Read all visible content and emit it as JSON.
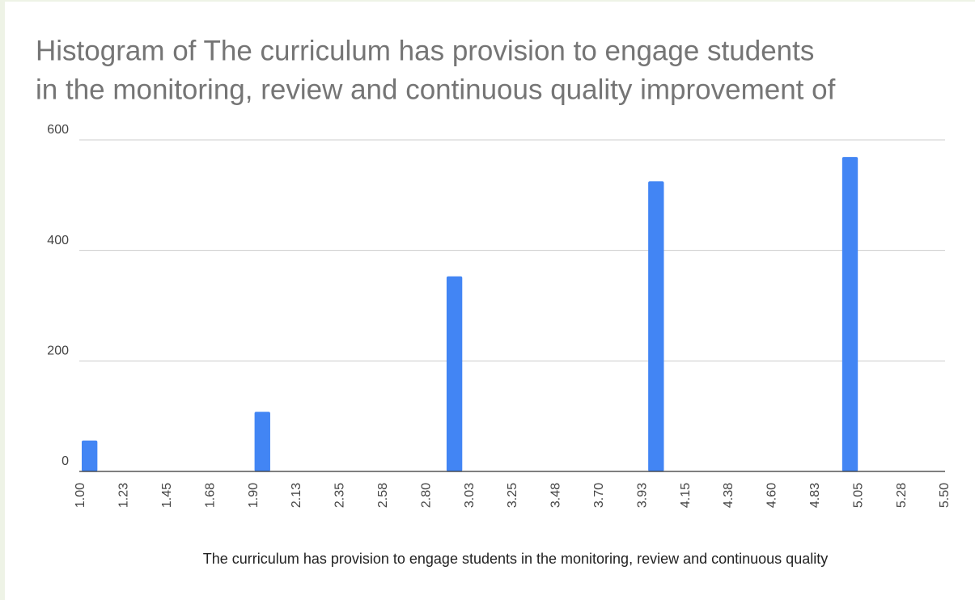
{
  "chart_data": {
    "type": "histogram",
    "title": "Histogram of  The curriculum has provision to engage students in the monitoring, review and continuous quality improvement of",
    "title_lines": [
      "Histogram of  The curriculum has provision to engage students",
      "in the monitoring, review and continuous quality improvement of"
    ],
    "xlabel": "The curriculum has provision to engage students in the monitoring, review and continuous quality",
    "bins": [
      1.0,
      1.09,
      1.9,
      1.99,
      2.9,
      2.99,
      3.95,
      4.04,
      4.96,
      5.05,
      5.5
    ],
    "values": [
      56,
      0,
      108,
      0,
      353,
      0,
      525,
      0,
      569,
      0
    ],
    "color": "#4285f4",
    "xlim": [
      1.0,
      5.5
    ],
    "xticks": [
      {
        "value": 1.0,
        "label": "1.00"
      },
      {
        "value": 1.225,
        "label": "1.23"
      },
      {
        "value": 1.45,
        "label": "1.45"
      },
      {
        "value": 1.675,
        "label": "1.68"
      },
      {
        "value": 1.9,
        "label": "1.90"
      },
      {
        "value": 2.125,
        "label": "2.13"
      },
      {
        "value": 2.35,
        "label": "2.35"
      },
      {
        "value": 2.575,
        "label": "2.58"
      },
      {
        "value": 2.8,
        "label": "2.80"
      },
      {
        "value": 3.025,
        "label": "3.03"
      },
      {
        "value": 3.25,
        "label": "3.25"
      },
      {
        "value": 3.475,
        "label": "3.48"
      },
      {
        "value": 3.7,
        "label": "3.70"
      },
      {
        "value": 3.925,
        "label": "3.93"
      },
      {
        "value": 4.15,
        "label": "4.15"
      },
      {
        "value": 4.375,
        "label": "4.38"
      },
      {
        "value": 4.6,
        "label": "4.60"
      },
      {
        "value": 4.825,
        "label": "4.83"
      },
      {
        "value": 5.05,
        "label": "5.05"
      },
      {
        "value": 5.275,
        "label": "5.28"
      },
      {
        "value": 5.5,
        "label": "5.50"
      }
    ],
    "ylim": [
      0,
      600
    ],
    "yticks": [
      0,
      200,
      400,
      600
    ],
    "grid": true
  }
}
